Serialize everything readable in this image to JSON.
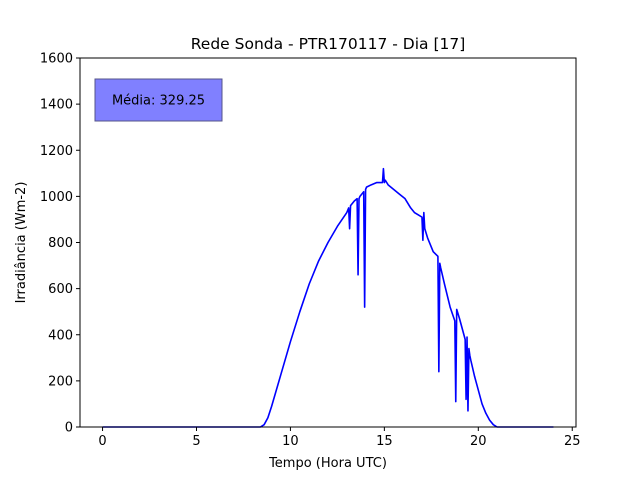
{
  "chart_data": {
    "type": "line",
    "title": "Rede Sonda - PTR170117 - Dia [17]",
    "xlabel": "Tempo (Hora UTC)",
    "ylabel": "Irradiância (Wm-2)",
    "xlim": [
      -1.2,
      25.2
    ],
    "ylim": [
      0,
      1600
    ],
    "xticks": [
      0,
      5,
      10,
      15,
      20,
      25
    ],
    "yticks": [
      0,
      200,
      400,
      600,
      800,
      1000,
      1200,
      1400,
      1600
    ],
    "grid": false,
    "annotation": "Média: 329.25",
    "series": [
      {
        "color": "#0000ff",
        "x": [
          0,
          8.4,
          8.6,
          8.8,
          9.0,
          9.5,
          10.0,
          10.5,
          11.0,
          11.5,
          12.0,
          12.5,
          13.0,
          13.1,
          13.15,
          13.2,
          13.4,
          13.55,
          13.6,
          13.65,
          13.7,
          13.9,
          13.95,
          14.0,
          14.05,
          14.3,
          14.6,
          14.9,
          14.95,
          15.0,
          15.05,
          15.2,
          15.5,
          15.8,
          16.1,
          16.4,
          16.6,
          16.8,
          17.0,
          17.05,
          17.1,
          17.15,
          17.3,
          17.6,
          17.85,
          17.9,
          17.95,
          18.0,
          18.2,
          18.5,
          18.75,
          18.8,
          18.85,
          19.0,
          19.3,
          19.35,
          19.4,
          19.45,
          19.5,
          19.55,
          19.6,
          19.8,
          20.0,
          20.2,
          20.4,
          20.6,
          20.8,
          21.0,
          21.2,
          22.0,
          24.0
        ],
        "y": [
          0,
          0,
          10,
          40,
          90,
          230,
          370,
          500,
          620,
          720,
          800,
          870,
          930,
          950,
          860,
          960,
          980,
          990,
          660,
          990,
          1000,
          1020,
          520,
          1030,
          1040,
          1050,
          1060,
          1060,
          1120,
          1060,
          1070,
          1050,
          1030,
          1010,
          990,
          950,
          930,
          920,
          910,
          810,
          930,
          860,
          820,
          760,
          740,
          240,
          710,
          690,
          620,
          520,
          460,
          110,
          510,
          470,
          380,
          120,
          390,
          70,
          340,
          310,
          290,
          220,
          160,
          100,
          60,
          30,
          10,
          0,
          0,
          0,
          0
        ]
      }
    ]
  }
}
